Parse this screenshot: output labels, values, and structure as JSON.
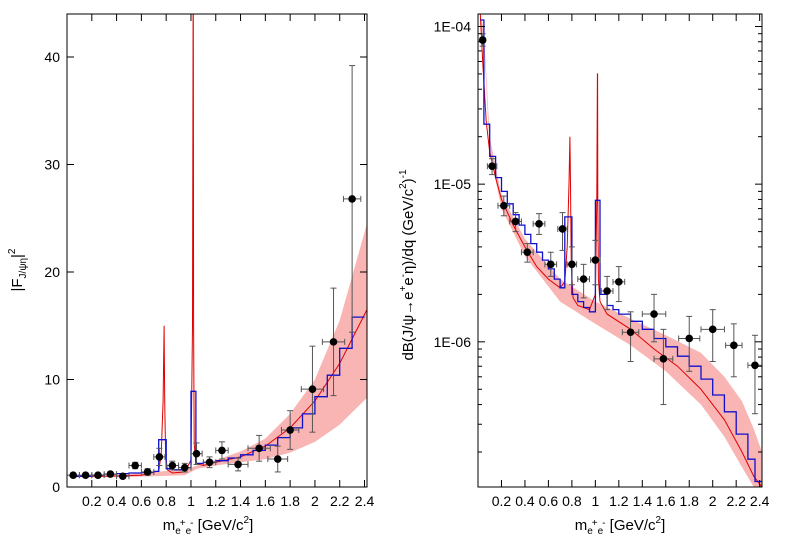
{
  "chart_data": [
    {
      "type": "line",
      "ylabel_main": "|F",
      "ylabel_sub": "J/ψη",
      "ylabel_tail": "|",
      "ylabel_sup": "2",
      "xlabel_main": "m",
      "xlabel_sub1": "e",
      "xlabel_sup1": "+",
      "xlabel_sub2": "e",
      "xlabel_sup2": "-",
      "xlabel_tail": " [GeV/c",
      "xlabel_sup3": "2",
      "xlabel_end": "]",
      "xlim": [
        0.0,
        2.42
      ],
      "ylim": [
        0,
        44
      ],
      "yscale": "linear",
      "x_ticks": [
        "0.2",
        "0.4",
        "0.6",
        "0.8",
        "1",
        "1.2",
        "1.4",
        "1.6",
        "1.8",
        "2",
        "2.2",
        "2.4"
      ],
      "y_ticks": [
        "0",
        "10",
        "20",
        "30",
        "40"
      ],
      "colors": {
        "model": "#e00000",
        "band": "#f9b4b4",
        "histogram": "#1010cc",
        "data": "#000000"
      },
      "band": {
        "x": [
          0.05,
          0.4,
          0.7,
          0.95,
          1.05,
          1.2,
          1.4,
          1.6,
          1.8,
          2.0,
          2.2,
          2.42
        ],
        "lower": [
          0.9,
          0.9,
          1.0,
          1.1,
          1.7,
          2.0,
          2.3,
          2.6,
          3.2,
          4.2,
          5.8,
          8.3
        ],
        "upper": [
          1.1,
          1.1,
          1.4,
          1.6,
          2.0,
          2.5,
          3.3,
          4.5,
          6.8,
          10.0,
          15.5,
          24.5
        ]
      },
      "model": {
        "x": [
          0.02,
          0.3,
          0.6,
          0.74,
          0.76,
          0.775,
          0.783,
          0.788,
          0.795,
          0.81,
          0.85,
          0.95,
          1.0,
          1.012,
          1.017,
          1.019,
          1.021,
          1.026,
          1.04,
          1.1,
          1.2,
          1.4,
          1.6,
          1.8,
          2.0,
          2.2,
          2.42
        ],
        "y": [
          1.0,
          1.0,
          1.1,
          1.5,
          3.0,
          8.0,
          15.0,
          8.0,
          3.0,
          1.6,
          1.3,
          1.4,
          2.5,
          15.0,
          44.0,
          44.0,
          15.0,
          4.0,
          2.2,
          2.0,
          2.3,
          2.8,
          3.8,
          5.5,
          8.0,
          11.5,
          16.5
        ]
      },
      "histogram": {
        "edges": [
          0.02,
          0.1,
          0.2,
          0.3,
          0.4,
          0.5,
          0.6,
          0.7,
          0.74,
          0.8,
          0.85,
          0.95,
          1.0,
          1.04,
          1.1,
          1.2,
          1.3,
          1.4,
          1.5,
          1.6,
          1.7,
          1.8,
          1.9,
          2.0,
          2.1,
          2.2,
          2.3,
          2.4
        ],
        "values": [
          1.0,
          1.0,
          1.1,
          1.2,
          1.25,
          1.3,
          1.35,
          1.45,
          4.4,
          1.7,
          1.6,
          1.8,
          8.9,
          2.2,
          2.3,
          2.45,
          2.7,
          3.0,
          3.4,
          3.9,
          4.6,
          5.5,
          6.8,
          8.4,
          10.4,
          12.9,
          15.8
        ]
      },
      "points": [
        {
          "x": 0.05,
          "y": 1.1,
          "xerr": 0.05,
          "yerr": 0.2
        },
        {
          "x": 0.15,
          "y": 1.1,
          "xerr": 0.05,
          "yerr": 0.2
        },
        {
          "x": 0.25,
          "y": 1.1,
          "xerr": 0.05,
          "yerr": 0.2
        },
        {
          "x": 0.35,
          "y": 1.2,
          "xerr": 0.05,
          "yerr": 0.2
        },
        {
          "x": 0.45,
          "y": 1.0,
          "xerr": 0.05,
          "yerr": 0.2
        },
        {
          "x": 0.55,
          "y": 2.0,
          "xerr": 0.05,
          "yerr": 0.3
        },
        {
          "x": 0.65,
          "y": 1.4,
          "xerr": 0.05,
          "yerr": 0.3
        },
        {
          "x": 0.745,
          "y": 2.8,
          "xerr": 0.045,
          "yerr": 0.8
        },
        {
          "x": 0.85,
          "y": 2.0,
          "xerr": 0.05,
          "yerr": 0.4
        },
        {
          "x": 0.95,
          "y": 1.8,
          "xerr": 0.05,
          "yerr": 0.4
        },
        {
          "x": 1.045,
          "y": 3.1,
          "xerr": 0.045,
          "yerr": 1.0
        },
        {
          "x": 1.15,
          "y": 2.3,
          "xerr": 0.05,
          "yerr": 0.5
        },
        {
          "x": 1.25,
          "y": 3.4,
          "xerr": 0.05,
          "yerr": 0.8
        },
        {
          "x": 1.38,
          "y": 2.1,
          "xerr": 0.08,
          "yerr": 0.6
        },
        {
          "x": 1.55,
          "y": 3.6,
          "xerr": 0.09,
          "yerr": 1.2
        },
        {
          "x": 1.7,
          "y": 2.6,
          "xerr": 0.08,
          "yerr": 1.2
        },
        {
          "x": 1.8,
          "y": 5.3,
          "xerr": 0.07,
          "yerr": 1.8
        },
        {
          "x": 1.98,
          "y": 9.1,
          "xerr": 0.09,
          "yerr": 4.0
        },
        {
          "x": 2.15,
          "y": 13.5,
          "xerr": 0.09,
          "yerr": 5.0
        },
        {
          "x": 2.3,
          "y": 26.8,
          "xerr": 0.07,
          "yerr": 12.4
        }
      ]
    },
    {
      "type": "line",
      "ylabel_main": "dB(J/ψ→e",
      "ylabel_sup1": "+",
      "ylabel_mid": "e",
      "ylabel_sup2": "-",
      "ylabel_tail": "η)/dq (GeV/c",
      "ylabel_sup3": "2",
      "ylabel_tail2": ")",
      "ylabel_sup4": "-1",
      "xlabel_main": "m",
      "xlabel_sub1": "e",
      "xlabel_sup1": "+",
      "xlabel_sub2": "e",
      "xlabel_sup2": "-",
      "xlabel_tail": " [GeV/c",
      "xlabel_sup3": "2",
      "xlabel_end": "]",
      "xlim": [
        0.0,
        2.42
      ],
      "ylim": [
        1.2e-07,
        0.00012
      ],
      "yscale": "log",
      "x_ticks": [
        "0.2",
        "0.4",
        "0.6",
        "0.8",
        "1",
        "1.2",
        "1.4",
        "1.6",
        "1.8",
        "2",
        "2.2",
        "2.4"
      ],
      "y_ticks": [
        {
          "value": 0.0001,
          "label": "1E-04"
        },
        {
          "value": 1e-05,
          "label": "1E-05"
        },
        {
          "value": 1e-06,
          "label": "1E-06"
        }
      ],
      "colors": {
        "model": "#e00000",
        "band": "#f9b4b4",
        "histogram": "#1010cc",
        "data": "#000000"
      },
      "band": {
        "x": [
          0.02,
          0.05,
          0.1,
          0.2,
          0.4,
          0.7,
          1.0,
          1.3,
          1.6,
          1.9,
          2.1,
          2.25,
          2.35,
          2.42
        ],
        "lower": [
          0.0001,
          8e-05,
          1.6e-05,
          7e-06,
          3.5e-06,
          1.8e-06,
          1.3e-06,
          9.5e-07,
          6.5e-07,
          4e-07,
          2.5e-07,
          1.6e-07,
          1.2e-07,
          1.2e-07
        ],
        "upper": [
          0.00012,
          9.5e-05,
          2e-05,
          8.5e-06,
          4.5e-06,
          2.5e-06,
          1.8e-06,
          1.4e-06,
          1.1e-06,
          8.5e-07,
          6e-07,
          4.2e-07,
          2.8e-07,
          2e-07
        ]
      },
      "model": {
        "x": [
          0.02,
          0.04,
          0.07,
          0.1,
          0.15,
          0.2,
          0.3,
          0.4,
          0.5,
          0.6,
          0.7,
          0.74,
          0.76,
          0.775,
          0.783,
          0.788,
          0.795,
          0.81,
          0.85,
          0.95,
          1.0,
          1.012,
          1.017,
          1.019,
          1.021,
          1.026,
          1.04,
          1.1,
          1.3,
          1.5,
          1.7,
          1.9,
          2.1,
          2.25,
          2.35,
          2.42
        ],
        "y": [
          0.00012,
          6e-05,
          2.5e-05,
          1.6e-05,
          1.1e-05,
          8e-06,
          5.5e-06,
          4e-06,
          3e-06,
          2.5e-06,
          2.2e-06,
          2.4e-06,
          4e-06,
          1e-05,
          2e-05,
          1e-05,
          3e-06,
          1.9e-06,
          1.7e-06,
          1.6e-06,
          2e-06,
          8e-06,
          5e-05,
          5e-05,
          8e-06,
          2.5e-06,
          1.8e-06,
          1.5e-06,
          1.2e-06,
          9e-07,
          7e-07,
          5e-07,
          3.2e-07,
          2e-07,
          1.4e-07,
          1.2e-07
        ]
      },
      "histogram": {
        "edges": [
          0.02,
          0.05,
          0.1,
          0.15,
          0.2,
          0.25,
          0.3,
          0.35,
          0.4,
          0.45,
          0.5,
          0.55,
          0.6,
          0.65,
          0.7,
          0.74,
          0.8,
          0.85,
          0.9,
          0.95,
          1.0,
          1.04,
          1.1,
          1.15,
          1.2,
          1.3,
          1.4,
          1.5,
          1.6,
          1.7,
          1.8,
          1.9,
          2.0,
          2.1,
          2.2,
          2.3,
          2.36,
          2.42
        ],
        "values": [
          0.00011,
          2.4e-05,
          1.5e-05,
          1.1e-05,
          9e-06,
          7.5e-06,
          6.4e-06,
          5.5e-06,
          4.8e-06,
          4.2e-06,
          3.7e-06,
          3.3e-06,
          2.9e-06,
          2.5e-06,
          2.2e-06,
          6.2e-06,
          2e-06,
          1.8e-06,
          1.65e-06,
          1.55e-06,
          7.9e-06,
          2e-06,
          1.7e-06,
          1.6e-06,
          1.5e-06,
          1.35e-06,
          1.2e-06,
          1.05e-06,
          9.3e-07,
          8.1e-07,
          7e-07,
          5.8e-07,
          4.6e-07,
          3.6e-07,
          2.6e-07,
          1.8e-07,
          1.3e-07
        ]
      },
      "points": [
        {
          "x": 0.04,
          "y": 8.2e-05,
          "xerr": 0.02,
          "ylo": 7.5e-05,
          "yhi": 9e-05
        },
        {
          "x": 0.12,
          "y": 1.3e-05,
          "xerr": 0.04,
          "ylo": 1.15e-05,
          "yhi": 1.45e-05
        },
        {
          "x": 0.22,
          "y": 7.3e-06,
          "xerr": 0.05,
          "ylo": 6.3e-06,
          "yhi": 8.4e-06
        },
        {
          "x": 0.32,
          "y": 5.8e-06,
          "xerr": 0.05,
          "ylo": 5e-06,
          "yhi": 6.6e-06
        },
        {
          "x": 0.42,
          "y": 3.7e-06,
          "xerr": 0.05,
          "ylo": 3.2e-06,
          "yhi": 4.2e-06
        },
        {
          "x": 0.52,
          "y": 5.6e-06,
          "xerr": 0.05,
          "ylo": 4.8e-06,
          "yhi": 6.5e-06
        },
        {
          "x": 0.62,
          "y": 3.1e-06,
          "xerr": 0.05,
          "ylo": 2.6e-06,
          "yhi": 3.7e-06
        },
        {
          "x": 0.72,
          "y": 5.2e-06,
          "xerr": 0.04,
          "ylo": 3.8e-06,
          "yhi": 6.6e-06
        },
        {
          "x": 0.8,
          "y": 3.1e-06,
          "xerr": 0.04,
          "ylo": 2.3e-06,
          "yhi": 4e-06
        },
        {
          "x": 0.9,
          "y": 2.5e-06,
          "xerr": 0.05,
          "ylo": 1.9e-06,
          "yhi": 3.1e-06
        },
        {
          "x": 1.0,
          "y": 3.3e-06,
          "xerr": 0.04,
          "ylo": 2.3e-06,
          "yhi": 4.4e-06
        },
        {
          "x": 1.1,
          "y": 2.1e-06,
          "xerr": 0.05,
          "ylo": 1.6e-06,
          "yhi": 2.6e-06
        },
        {
          "x": 1.2,
          "y": 2.4e-06,
          "xerr": 0.05,
          "ylo": 1.8e-06,
          "yhi": 3e-06
        },
        {
          "x": 1.3,
          "y": 1.15e-06,
          "xerr": 0.07,
          "ylo": 7.5e-07,
          "yhi": 1.55e-06
        },
        {
          "x": 1.5,
          "y": 1.5e-06,
          "xerr": 0.1,
          "ylo": 1e-06,
          "yhi": 2e-06
        },
        {
          "x": 1.58,
          "y": 7.8e-07,
          "xerr": 0.08,
          "ylo": 4e-07,
          "yhi": 1.2e-06
        },
        {
          "x": 1.8,
          "y": 1.05e-06,
          "xerr": 0.09,
          "ylo": 6.5e-07,
          "yhi": 1.45e-06
        },
        {
          "x": 2.0,
          "y": 1.2e-06,
          "xerr": 0.1,
          "ylo": 7.5e-07,
          "yhi": 1.6e-06
        },
        {
          "x": 2.18,
          "y": 9.5e-07,
          "xerr": 0.07,
          "ylo": 6e-07,
          "yhi": 1.3e-06
        },
        {
          "x": 2.36,
          "y": 7.1e-07,
          "xerr": 0.06,
          "ylo": 3.5e-07,
          "yhi": 1.1e-06
        }
      ]
    }
  ]
}
